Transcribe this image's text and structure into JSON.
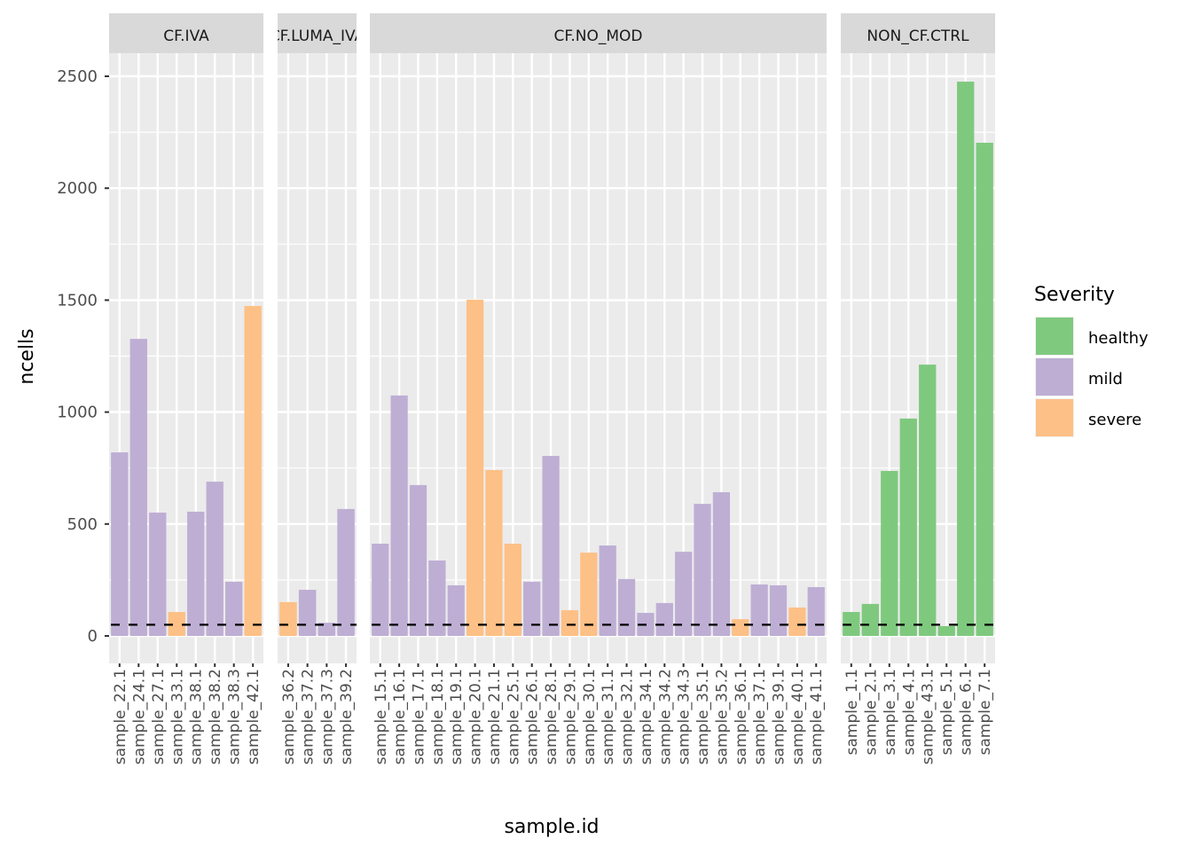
{
  "chart_data": {
    "type": "bar",
    "xlabel": "sample.id",
    "ylabel": "ncells",
    "ylim": [
      0,
      2550
    ],
    "yticks": [
      0,
      500,
      1000,
      1500,
      2000,
      2500
    ],
    "grid": true,
    "threshold_line": {
      "value": 50,
      "style": "dashed",
      "color": "#000000"
    },
    "legend": {
      "title": "Severity",
      "placement": "right",
      "entries": [
        {
          "label": "healthy",
          "color": "#7FC97F"
        },
        {
          "label": "mild",
          "color": "#BEAED4"
        },
        {
          "label": "severe",
          "color": "#FDC086"
        }
      ]
    },
    "facets": [
      {
        "label": "CF.IVA",
        "bars": [
          {
            "x": "sample_22.1",
            "y": 820,
            "severity": "mild"
          },
          {
            "x": "sample_24.1",
            "y": 1327,
            "severity": "mild"
          },
          {
            "x": "sample_27.1",
            "y": 551,
            "severity": "mild"
          },
          {
            "x": "sample_33.1",
            "y": 107,
            "severity": "severe"
          },
          {
            "x": "sample_38.1",
            "y": 555,
            "severity": "mild"
          },
          {
            "x": "sample_38.2",
            "y": 689,
            "severity": "mild"
          },
          {
            "x": "sample_38.3",
            "y": 242,
            "severity": "mild"
          },
          {
            "x": "sample_42.1",
            "y": 1474,
            "severity": "severe"
          }
        ]
      },
      {
        "label": "CF.LUMA_IVA",
        "bars": [
          {
            "x": "sample_36.2",
            "y": 151,
            "severity": "severe"
          },
          {
            "x": "sample_37.2",
            "y": 206,
            "severity": "mild"
          },
          {
            "x": "sample_37.3",
            "y": 59,
            "severity": "mild"
          },
          {
            "x": "sample_39.2",
            "y": 567,
            "severity": "mild"
          }
        ]
      },
      {
        "label": "CF.NO_MOD",
        "bars": [
          {
            "x": "sample_15.1",
            "y": 412,
            "severity": "mild"
          },
          {
            "x": "sample_16.1",
            "y": 1074,
            "severity": "mild"
          },
          {
            "x": "sample_17.1",
            "y": 674,
            "severity": "mild"
          },
          {
            "x": "sample_18.1",
            "y": 337,
            "severity": "mild"
          },
          {
            "x": "sample_19.1",
            "y": 226,
            "severity": "mild"
          },
          {
            "x": "sample_20.1",
            "y": 1502,
            "severity": "severe"
          },
          {
            "x": "sample_21.1",
            "y": 741,
            "severity": "severe"
          },
          {
            "x": "sample_25.1",
            "y": 412,
            "severity": "severe"
          },
          {
            "x": "sample_26.1",
            "y": 242,
            "severity": "mild"
          },
          {
            "x": "sample_28.1",
            "y": 804,
            "severity": "mild"
          },
          {
            "x": "sample_29.1",
            "y": 115,
            "severity": "severe"
          },
          {
            "x": "sample_30.1",
            "y": 372,
            "severity": "severe"
          },
          {
            "x": "sample_31.1",
            "y": 404,
            "severity": "mild"
          },
          {
            "x": "sample_32.1",
            "y": 254,
            "severity": "mild"
          },
          {
            "x": "sample_34.1",
            "y": 103,
            "severity": "mild"
          },
          {
            "x": "sample_34.2",
            "y": 147,
            "severity": "mild"
          },
          {
            "x": "sample_34.3",
            "y": 376,
            "severity": "mild"
          },
          {
            "x": "sample_35.1",
            "y": 590,
            "severity": "mild"
          },
          {
            "x": "sample_35.2",
            "y": 642,
            "severity": "mild"
          },
          {
            "x": "sample_36.1",
            "y": 75,
            "severity": "severe"
          },
          {
            "x": "sample_37.1",
            "y": 230,
            "severity": "mild"
          },
          {
            "x": "sample_39.1",
            "y": 226,
            "severity": "mild"
          },
          {
            "x": "sample_40.1",
            "y": 127,
            "severity": "severe"
          },
          {
            "x": "sample_41.1",
            "y": 218,
            "severity": "mild"
          }
        ]
      },
      {
        "label": "NON_CF.CTRL",
        "bars": [
          {
            "x": "sample_1.1",
            "y": 107,
            "severity": "healthy"
          },
          {
            "x": "sample_2.1",
            "y": 143,
            "severity": "healthy"
          },
          {
            "x": "sample_3.1",
            "y": 737,
            "severity": "healthy"
          },
          {
            "x": "sample_4.1",
            "y": 971,
            "severity": "healthy"
          },
          {
            "x": "sample_43.1",
            "y": 1212,
            "severity": "healthy"
          },
          {
            "x": "sample_5.1",
            "y": 44,
            "severity": "healthy"
          },
          {
            "x": "sample_6.1",
            "y": 2476,
            "severity": "healthy"
          },
          {
            "x": "sample_7.1",
            "y": 2203,
            "severity": "healthy"
          }
        ]
      }
    ]
  }
}
